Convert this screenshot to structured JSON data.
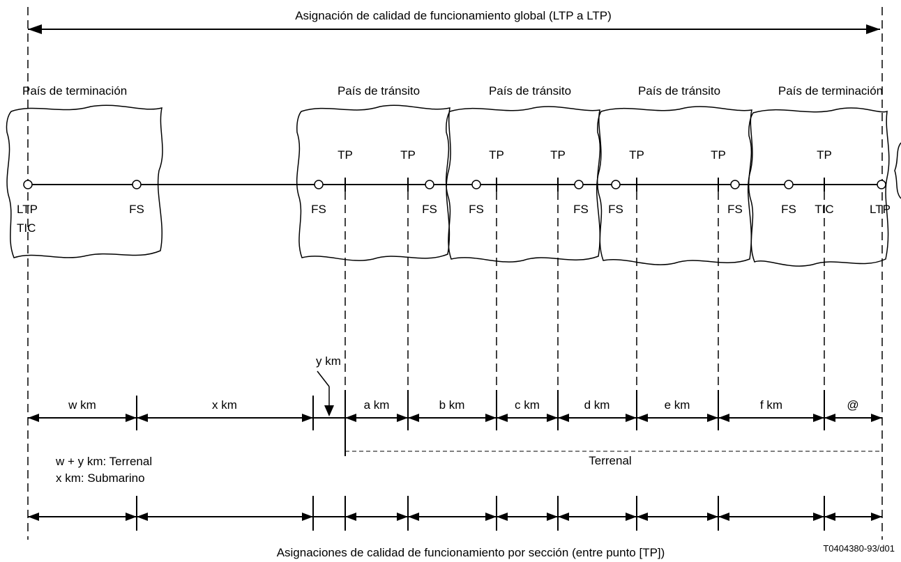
{
  "top_title": "Asignación de calidad de funcionamiento global (LTP a LTP)",
  "bottom_title": "Asignaciones de calidad de funcionamiento por sección (entre punto [TP])",
  "figure_ref": "T0404380-93/d01",
  "countries": [
    "País de terminación",
    "País de tránsito",
    "País de tránsito",
    "País de tránsito",
    "País de terminación"
  ],
  "point_labels": {
    "ltp": "LTP",
    "tic": "TIC",
    "tp": "TP",
    "fs": "FS"
  },
  "segments": [
    "w km",
    "x km",
    "y km",
    "a km",
    "b km",
    "c km",
    "d km",
    "e km",
    "f km",
    "@"
  ],
  "notes": {
    "terrestrial_sub": "w + y km: Terrenal",
    "submarine": "x km: Submarino",
    "terrestrial_right": "Terrenal"
  }
}
